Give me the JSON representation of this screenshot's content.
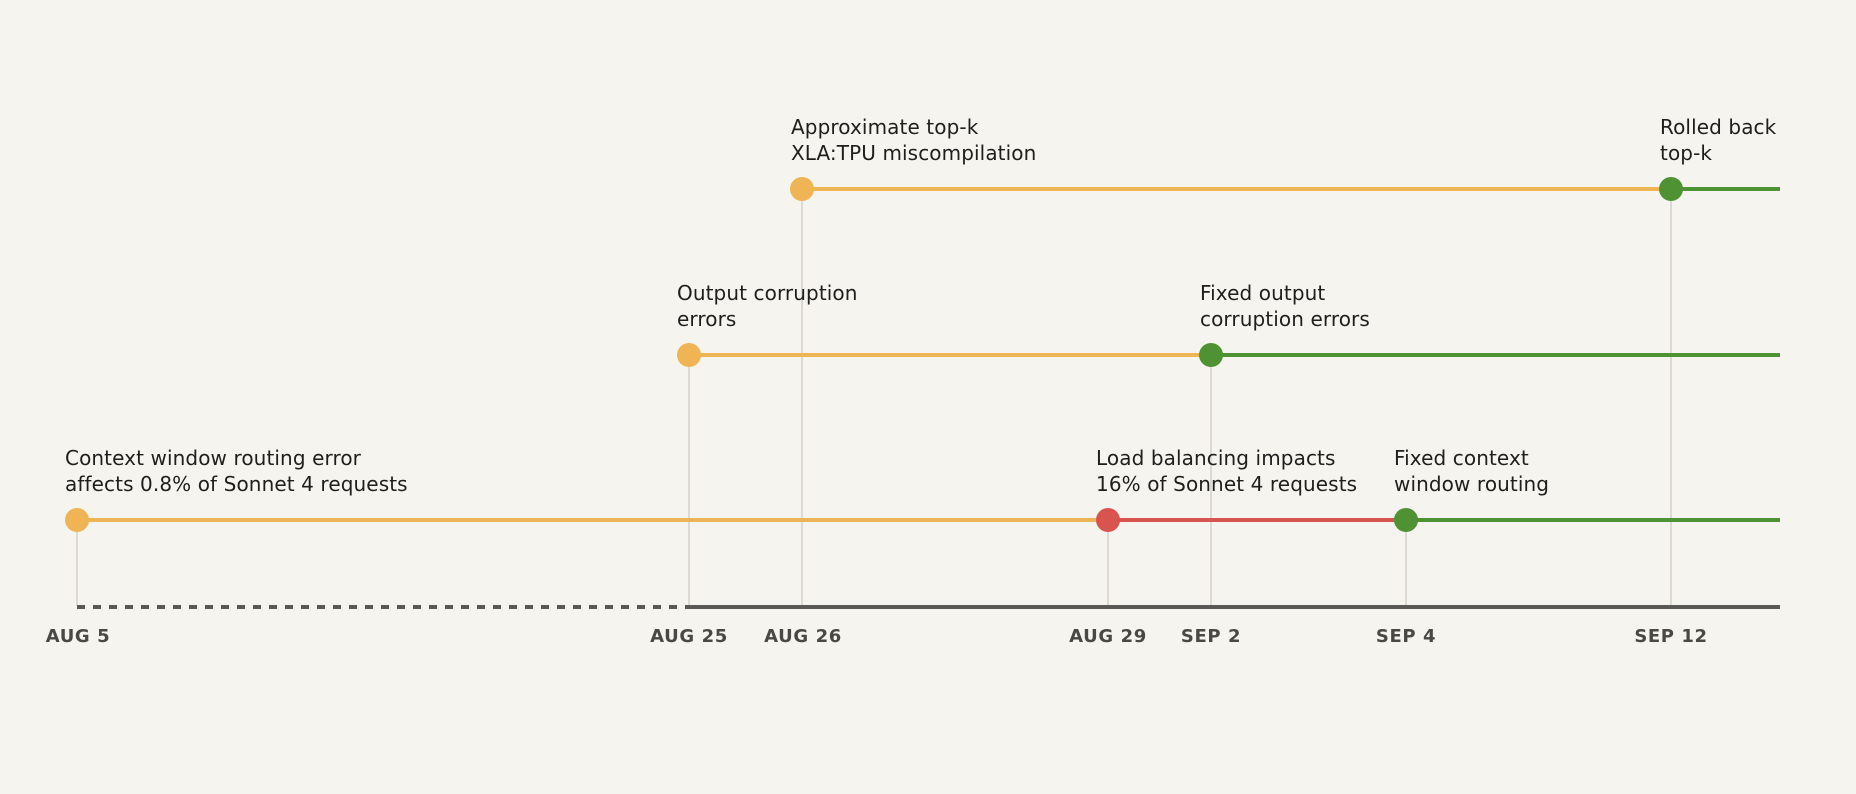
{
  "axis": {
    "ticks": [
      "AUG 5",
      "AUG 25",
      "AUG 26",
      "AUG 29",
      "SEP 2",
      "SEP 4",
      "SEP 12"
    ]
  },
  "events": {
    "context_error": [
      "Context window routing error",
      "affects 0.8% of Sonnet 4 requests"
    ],
    "load_balancing": [
      "Load balancing impacts",
      "16% of Sonnet 4 requests"
    ],
    "context_fixed": [
      "Fixed context",
      "window routing"
    ],
    "output_errors": [
      "Output corruption",
      "errors"
    ],
    "output_fixed": [
      "Fixed output",
      "corruption errors"
    ],
    "topk_error": [
      "Approximate top-k",
      "XLA:TPU miscompilation"
    ],
    "topk_rolled_back": [
      "Rolled back",
      "top-k"
    ]
  },
  "colors": {
    "incident": "#efb453",
    "severe": "#d9534f",
    "resolved": "#4f9233",
    "axis": "#5a5855",
    "guide": "#dcdad3",
    "background": "#f5f4ee"
  }
}
